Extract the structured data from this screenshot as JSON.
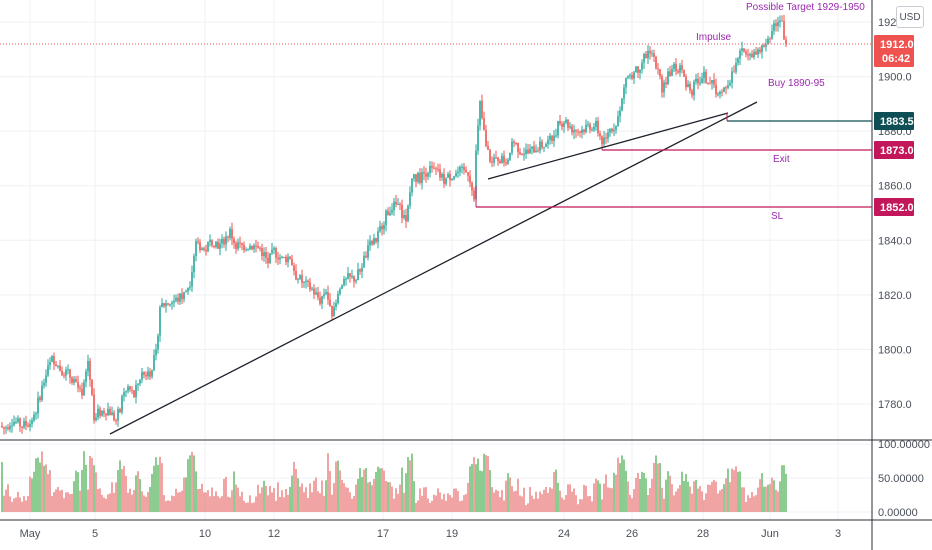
{
  "currency": "USD",
  "chart_data": {
    "type": "candlestick",
    "y_axis_ticks": [
      "1780.0",
      "1800.0",
      "1820.0",
      "1840.0",
      "1860.0",
      "1880.0",
      "1900.0",
      "1920.0"
    ],
    "x_axis_ticks": [
      "May",
      "5",
      "10",
      "12",
      "17",
      "19",
      "24",
      "26",
      "28",
      "Jun",
      "3"
    ],
    "ylim": [
      1767,
      1933
    ],
    "price_series": [
      [
        0,
        1772
      ],
      [
        4,
        1771
      ],
      [
        12,
        1774
      ],
      [
        22,
        1772
      ],
      [
        30,
        1773
      ],
      [
        36,
        1778
      ],
      [
        42,
        1786
      ],
      [
        48,
        1793
      ],
      [
        53,
        1797
      ],
      [
        60,
        1793
      ],
      [
        68,
        1791
      ],
      [
        76,
        1788
      ],
      [
        82,
        1782
      ],
      [
        88,
        1796
      ],
      [
        94,
        1776
      ],
      [
        100,
        1777
      ],
      [
        108,
        1778
      ],
      [
        116,
        1774
      ],
      [
        122,
        1781
      ],
      [
        128,
        1786
      ],
      [
        134,
        1783
      ],
      [
        140,
        1790
      ],
      [
        150,
        1792
      ],
      [
        156,
        1798
      ],
      [
        160,
        1816
      ],
      [
        168,
        1817
      ],
      [
        176,
        1818
      ],
      [
        184,
        1820
      ],
      [
        190,
        1825
      ],
      [
        196,
        1840
      ],
      [
        204,
        1836
      ],
      [
        212,
        1840
      ],
      [
        220,
        1838
      ],
      [
        230,
        1843
      ],
      [
        236,
        1838
      ],
      [
        244,
        1838
      ],
      [
        252,
        1838
      ],
      [
        260,
        1837
      ],
      [
        268,
        1832
      ],
      [
        274,
        1836
      ],
      [
        282,
        1833
      ],
      [
        290,
        1834
      ],
      [
        296,
        1827
      ],
      [
        304,
        1824
      ],
      [
        312,
        1822
      ],
      [
        320,
        1818
      ],
      [
        326,
        1822
      ],
      [
        332,
        1811
      ],
      [
        340,
        1822
      ],
      [
        348,
        1826
      ],
      [
        356,
        1826
      ],
      [
        364,
        1833
      ],
      [
        370,
        1838
      ],
      [
        376,
        1840
      ],
      [
        382,
        1846
      ],
      [
        390,
        1852
      ],
      [
        398,
        1853
      ],
      [
        406,
        1846
      ],
      [
        412,
        1863
      ],
      [
        420,
        1863
      ],
      [
        428,
        1866
      ],
      [
        436,
        1865
      ],
      [
        444,
        1862
      ],
      [
        452,
        1864
      ],
      [
        460,
        1865
      ],
      [
        468,
        1865
      ],
      [
        474,
        1857
      ],
      [
        476,
        1872
      ],
      [
        480,
        1890
      ],
      [
        486,
        1874
      ],
      [
        492,
        1868
      ],
      [
        498,
        1870
      ],
      [
        506,
        1869
      ],
      [
        514,
        1876
      ],
      [
        520,
        1873
      ],
      [
        528,
        1872
      ],
      [
        536,
        1874
      ],
      [
        544,
        1875
      ],
      [
        552,
        1877
      ],
      [
        558,
        1882
      ],
      [
        564,
        1884
      ],
      [
        572,
        1881
      ],
      [
        580,
        1880
      ],
      [
        588,
        1882
      ],
      [
        596,
        1882
      ],
      [
        602,
        1876
      ],
      [
        608,
        1880
      ],
      [
        614,
        1882
      ],
      [
        620,
        1887
      ],
      [
        626,
        1900
      ],
      [
        632,
        1900
      ],
      [
        638,
        1903
      ],
      [
        644,
        1907
      ],
      [
        650,
        1910
      ],
      [
        656,
        1905
      ],
      [
        662,
        1896
      ],
      [
        668,
        1900
      ],
      [
        674,
        1904
      ],
      [
        680,
        1903
      ],
      [
        686,
        1898
      ],
      [
        692,
        1895
      ],
      [
        698,
        1899
      ],
      [
        704,
        1900
      ],
      [
        710,
        1898
      ],
      [
        716,
        1895
      ],
      [
        722,
        1893
      ],
      [
        728,
        1898
      ],
      [
        734,
        1902
      ],
      [
        740,
        1908
      ],
      [
        746,
        1910
      ],
      [
        752,
        1909
      ],
      [
        758,
        1908
      ],
      [
        764,
        1912
      ],
      [
        770,
        1915
      ],
      [
        776,
        1920
      ],
      [
        782,
        1919
      ],
      [
        786,
        1911
      ]
    ],
    "horizontal_levels": [
      {
        "label": "",
        "tag": "1883.5",
        "color": "#0d4f55"
      },
      {
        "label": "Exit",
        "tag": "1873.0",
        "color": "#c2185b"
      },
      {
        "label": "SL",
        "tag": "1852.0",
        "color": "#c2185b"
      }
    ],
    "current_price": {
      "tag": "1912.0",
      "countdown": "06:42",
      "color": "#ef5350"
    },
    "annotations": [
      {
        "text": "Impulse",
        "color": "#9c27b0"
      },
      {
        "text": "Possible Target 1929-1950",
        "color": "#9c27b0"
      },
      {
        "text": "Buy 1890-95",
        "color": "#9c27b0"
      }
    ],
    "trendlines": [
      {
        "from_x": "5",
        "from_y": 1770,
        "to_x": "28",
        "to_y": 1890
      },
      {
        "from_x": "19",
        "from_y": 1862,
        "to_x": "28",
        "to_y": 1884
      }
    ],
    "volume": {
      "y_axis_ticks": [
        "0.00000",
        "50.00000",
        "100.00000"
      ],
      "ylim": [
        0,
        100
      ],
      "up_color": "#81c784",
      "down_color": "#ef9a9a"
    }
  }
}
